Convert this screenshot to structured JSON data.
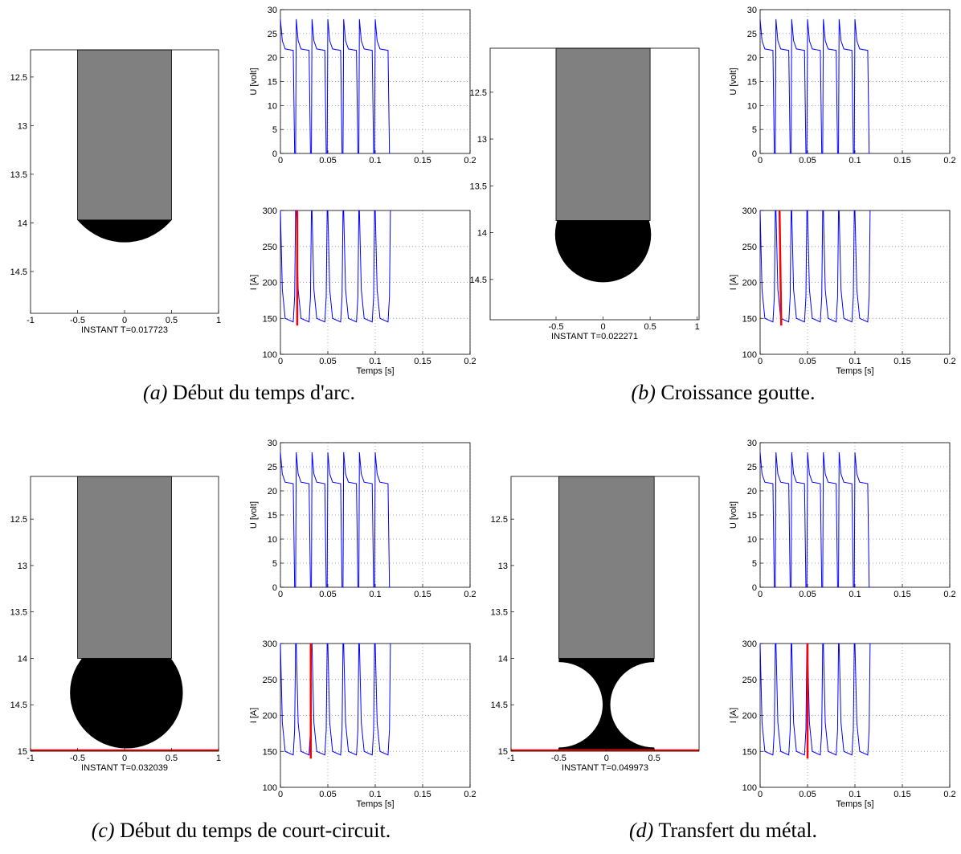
{
  "chart_data": [
    {
      "type": "drop",
      "xlabel": "INSTANT T=0.017723",
      "xlim": [
        -1,
        1
      ],
      "ylim": [
        12.22,
        14.93
      ],
      "y_reversed": true,
      "xticks": [
        -1,
        -0.5,
        0,
        0.5,
        1
      ],
      "yticks": [
        12.5,
        13,
        13.5,
        14,
        14.5
      ],
      "electrode": {
        "left": -0.5,
        "right": 0.5,
        "bottom": 13.97,
        "color": "#808080"
      },
      "drop": {
        "cx": 0,
        "cy": 13.54,
        "r": 0.66,
        "color": "#000000"
      }
    },
    {
      "type": "line",
      "ylabel": "U [volt]",
      "xlim": [
        0,
        0.2
      ],
      "ylim": [
        0,
        30
      ],
      "xticks": [
        0,
        0.05,
        0.1,
        0.15,
        0.2
      ],
      "yticks": [
        0,
        5,
        10,
        15,
        20,
        25,
        30
      ],
      "grid": true,
      "x": [
        0,
        0.002,
        0.005,
        0.0135,
        0.015,
        0.016,
        0.0167,
        0.0187,
        0.0217,
        0.0302,
        0.0317,
        0.0327,
        0.0333,
        0.0353,
        0.0383,
        0.0468,
        0.0483,
        0.0493,
        0.05,
        0.052,
        0.055,
        0.0635,
        0.065,
        0.066,
        0.0667,
        0.0687,
        0.0717,
        0.0802,
        0.0817,
        0.0827,
        0.0833,
        0.0853,
        0.0883,
        0.0968,
        0.0983,
        0.0993,
        0.1,
        0.102,
        0.105,
        0.1135,
        0.115,
        0.116
      ],
      "series": [
        {
          "color": "#0000ff",
          "values": [
            28,
            23.5,
            21.8,
            21.5,
            0,
            0,
            28,
            23.5,
            21.8,
            21.5,
            0,
            0,
            28,
            23.5,
            21.8,
            21.5,
            0,
            0,
            28,
            23.5,
            21.8,
            21.5,
            0,
            0,
            28,
            23.5,
            21.8,
            21.5,
            0,
            0,
            28,
            23.5,
            21.8,
            21.5,
            0,
            0,
            28,
            23.5,
            21.8,
            21.5,
            0,
            0
          ]
        }
      ]
    },
    {
      "type": "line",
      "ylabel": "I [A]",
      "xlabel": "Temps [s]",
      "xlim": [
        0,
        0.2
      ],
      "ylim": [
        100,
        300
      ],
      "xticks": [
        0,
        0.05,
        0.1,
        0.15,
        0.2
      ],
      "yticks": [
        100,
        150,
        200,
        250,
        300
      ],
      "grid": true,
      "x": [
        0,
        0.002,
        0.005,
        0.0135,
        0.015,
        0.016,
        0.0167,
        0.0187,
        0.0217,
        0.0302,
        0.0317,
        0.0327,
        0.0333,
        0.0353,
        0.0383,
        0.0468,
        0.0483,
        0.0493,
        0.05,
        0.052,
        0.055,
        0.0635,
        0.065,
        0.066,
        0.0667,
        0.0687,
        0.0717,
        0.0802,
        0.0817,
        0.0827,
        0.0833,
        0.0853,
        0.0883,
        0.0968,
        0.0983,
        0.0993,
        0.1,
        0.102,
        0.105,
        0.1135,
        0.115,
        0.116
      ],
      "series": [
        {
          "color": "#0000ff",
          "values": [
            300,
            190,
            150,
            145,
            180,
            300,
            300,
            190,
            150,
            145,
            180,
            300,
            300,
            190,
            150,
            145,
            180,
            300,
            300,
            190,
            150,
            145,
            180,
            300,
            300,
            190,
            150,
            145,
            180,
            300,
            300,
            190,
            150,
            145,
            180,
            300,
            300,
            190,
            150,
            145,
            180,
            300
          ]
        }
      ],
      "cursor": {
        "color": "#ff0000",
        "x": [
          0.0177,
          0.0177
        ],
        "values": [
          300,
          140
        ]
      }
    },
    {
      "type": "drop",
      "xlabel": "INSTANT T=0.022271",
      "xlim": [
        -1.2,
        1.02
      ],
      "ylim": [
        12.03,
        14.93
      ],
      "y_reversed": true,
      "xticks": [
        -0.5,
        0,
        0.5,
        1
      ],
      "yticks": [
        12.5,
        13,
        13.5,
        14,
        14.5
      ],
      "electrode": {
        "left": -0.5,
        "right": 0.5,
        "bottom": 13.87,
        "color": "#808080"
      },
      "drop": {
        "cx": 0,
        "cy": 14.02,
        "r": 0.51,
        "color": "#000000"
      }
    },
    {
      "type": "line",
      "ylabel": "U [volt]",
      "xlim": [
        0,
        0.2
      ],
      "ylim": [
        0,
        30
      ],
      "xticks": [
        0,
        0.05,
        0.1,
        0.15,
        0.2
      ],
      "yticks": [
        0,
        5,
        10,
        15,
        20,
        25,
        30
      ],
      "grid": true,
      "x": [
        0,
        0.002,
        0.005,
        0.0135,
        0.015,
        0.016,
        0.0167,
        0.0187,
        0.0217,
        0.0302,
        0.0317,
        0.0327,
        0.0333,
        0.0353,
        0.0383,
        0.0468,
        0.0483,
        0.0493,
        0.05,
        0.052,
        0.055,
        0.0635,
        0.065,
        0.066,
        0.0667,
        0.0687,
        0.0717,
        0.0802,
        0.0817,
        0.0827,
        0.0833,
        0.0853,
        0.0883,
        0.0968,
        0.0983,
        0.0993,
        0.1,
        0.102,
        0.105,
        0.1135,
        0.115,
        0.116
      ],
      "series": [
        {
          "color": "#0000ff",
          "values": [
            28,
            23.5,
            21.8,
            21.5,
            0,
            0,
            28,
            23.5,
            21.8,
            21.5,
            0,
            0,
            28,
            23.5,
            21.8,
            21.5,
            0,
            0,
            28,
            23.5,
            21.8,
            21.5,
            0,
            0,
            28,
            23.5,
            21.8,
            21.5,
            0,
            0,
            28,
            23.5,
            21.8,
            21.5,
            0,
            0,
            28,
            23.5,
            21.8,
            21.5,
            0,
            0
          ]
        }
      ]
    },
    {
      "type": "line",
      "ylabel": "I [A]",
      "xlabel": "Temps [s]",
      "xlim": [
        0,
        0.2
      ],
      "ylim": [
        100,
        300
      ],
      "xticks": [
        0,
        0.05,
        0.1,
        0.15,
        0.2
      ],
      "yticks": [
        100,
        150,
        200,
        250,
        300
      ],
      "grid": true,
      "x": [
        0,
        0.002,
        0.005,
        0.0135,
        0.015,
        0.016,
        0.0167,
        0.0187,
        0.0217,
        0.0302,
        0.0317,
        0.0327,
        0.0333,
        0.0353,
        0.0383,
        0.0468,
        0.0483,
        0.0493,
        0.05,
        0.052,
        0.055,
        0.0635,
        0.065,
        0.066,
        0.0667,
        0.0687,
        0.0717,
        0.0802,
        0.0817,
        0.0827,
        0.0833,
        0.0853,
        0.0883,
        0.0968,
        0.0983,
        0.0993,
        0.1,
        0.102,
        0.105,
        0.1135,
        0.115,
        0.116
      ],
      "series": [
        {
          "color": "#0000ff",
          "values": [
            300,
            190,
            150,
            145,
            180,
            300,
            300,
            190,
            150,
            145,
            180,
            300,
            300,
            190,
            150,
            145,
            180,
            300,
            300,
            190,
            150,
            145,
            180,
            300,
            300,
            190,
            150,
            145,
            180,
            300,
            300,
            190,
            150,
            145,
            180,
            300,
            300,
            190,
            150,
            145,
            180,
            300
          ]
        }
      ],
      "cursor": {
        "color": "#ff0000",
        "x": [
          0.0205,
          0.0223
        ],
        "values": [
          300,
          140
        ]
      }
    },
    {
      "type": "drop",
      "xlabel": "INSTANT T=0.032039",
      "xlim": [
        -1,
        1
      ],
      "ylim": [
        12.04,
        15
      ],
      "y_reversed": true,
      "xticks": [
        -1,
        -0.5,
        0,
        0.5,
        1
      ],
      "yticks": [
        12.5,
        13,
        13.5,
        14,
        14.5,
        15
      ],
      "electrode": {
        "left": -0.5,
        "right": 0.5,
        "bottom": 14.0,
        "color": "#808080"
      },
      "drop": {
        "cx": 0.02,
        "cy": 14.37,
        "r": 0.6,
        "color": "#000000"
      },
      "baseline": {
        "y": 15,
        "color": "#ff0000"
      }
    },
    {
      "type": "line",
      "ylabel": "U [volt]",
      "xlim": [
        0,
        0.2
      ],
      "ylim": [
        0,
        30
      ],
      "xticks": [
        0,
        0.05,
        0.1,
        0.15,
        0.2
      ],
      "yticks": [
        0,
        5,
        10,
        15,
        20,
        25,
        30
      ],
      "grid": true,
      "x": [
        0,
        0.002,
        0.005,
        0.0135,
        0.015,
        0.016,
        0.0167,
        0.0187,
        0.0217,
        0.0302,
        0.0317,
        0.0327,
        0.0333,
        0.0353,
        0.0383,
        0.0468,
        0.0483,
        0.0493,
        0.05,
        0.052,
        0.055,
        0.0635,
        0.065,
        0.066,
        0.0667,
        0.0687,
        0.0717,
        0.0802,
        0.0817,
        0.0827,
        0.0833,
        0.0853,
        0.0883,
        0.0968,
        0.0983,
        0.0993,
        0.1,
        0.102,
        0.105,
        0.1135,
        0.115,
        0.116
      ],
      "series": [
        {
          "color": "#0000ff",
          "values": [
            28,
            23.5,
            21.8,
            21.5,
            0,
            0,
            28,
            23.5,
            21.8,
            21.5,
            0,
            0,
            28,
            23.5,
            21.8,
            21.5,
            0,
            0,
            28,
            23.5,
            21.8,
            21.5,
            0,
            0,
            28,
            23.5,
            21.8,
            21.5,
            0,
            0,
            28,
            23.5,
            21.8,
            21.5,
            0,
            0,
            28,
            23.5,
            21.8,
            21.5,
            0,
            0
          ]
        }
      ]
    },
    {
      "type": "line",
      "ylabel": "I [A]",
      "xlabel": "Temps [s]",
      "xlim": [
        0,
        0.2
      ],
      "ylim": [
        100,
        300
      ],
      "xticks": [
        0,
        0.05,
        0.1,
        0.15,
        0.2
      ],
      "yticks": [
        100,
        150,
        200,
        250,
        300
      ],
      "grid": true,
      "x": [
        0,
        0.002,
        0.005,
        0.0135,
        0.015,
        0.016,
        0.0167,
        0.0187,
        0.0217,
        0.0302,
        0.0317,
        0.0327,
        0.0333,
        0.0353,
        0.0383,
        0.0468,
        0.0483,
        0.0493,
        0.05,
        0.052,
        0.055,
        0.0635,
        0.065,
        0.066,
        0.0667,
        0.0687,
        0.0717,
        0.0802,
        0.0817,
        0.0827,
        0.0833,
        0.0853,
        0.0883,
        0.0968,
        0.0983,
        0.0993,
        0.1,
        0.102,
        0.105,
        0.1135,
        0.115,
        0.116
      ],
      "series": [
        {
          "color": "#0000ff",
          "values": [
            300,
            190,
            150,
            145,
            180,
            300,
            300,
            190,
            150,
            145,
            180,
            300,
            300,
            190,
            150,
            145,
            180,
            300,
            300,
            190,
            150,
            145,
            180,
            300,
            300,
            190,
            150,
            145,
            180,
            300,
            300,
            190,
            150,
            145,
            180,
            300,
            300,
            190,
            150,
            145,
            180,
            300
          ]
        }
      ],
      "cursor": {
        "color": "#ff0000",
        "x": [
          0.032,
          0.032
        ],
        "values": [
          300,
          140
        ]
      }
    },
    {
      "type": "drop",
      "xlabel": "INSTANT T=0.049973",
      "xlim": [
        -1,
        0.97
      ],
      "ylim": [
        12.04,
        15
      ],
      "y_reversed": true,
      "xticks": [
        -1,
        -0.5,
        0,
        0.5
      ],
      "yticks": [
        12.5,
        13,
        13.5,
        14,
        14.5,
        15
      ],
      "electrode": {
        "left": -0.5,
        "right": 0.5,
        "bottom": 14.0,
        "color": "#808080"
      },
      "neck": {
        "top": 14,
        "bottom": 15,
        "color": "#000000",
        "cutouts": [
          {
            "cx": -0.5,
            "cy": 14.5,
            "r": 0.46
          },
          {
            "cx": 0.5,
            "cy": 14.5,
            "r": 0.46
          }
        ]
      },
      "baseline": {
        "y": 15,
        "color": "#ff0000"
      }
    },
    {
      "type": "line",
      "ylabel": "U [volt]",
      "xlim": [
        0,
        0.2
      ],
      "ylim": [
        0,
        30
      ],
      "xticks": [
        0,
        0.05,
        0.1,
        0.15,
        0.2
      ],
      "yticks": [
        0,
        5,
        10,
        15,
        20,
        25,
        30
      ],
      "grid": true,
      "x": [
        0,
        0.002,
        0.005,
        0.0135,
        0.015,
        0.016,
        0.0167,
        0.0187,
        0.0217,
        0.0302,
        0.0317,
        0.0327,
        0.0333,
        0.0353,
        0.0383,
        0.0468,
        0.0483,
        0.0493,
        0.05,
        0.052,
        0.055,
        0.0635,
        0.065,
        0.066,
        0.0667,
        0.0687,
        0.0717,
        0.0802,
        0.0817,
        0.0827,
        0.0833,
        0.0853,
        0.0883,
        0.0968,
        0.0983,
        0.0993,
        0.1,
        0.102,
        0.105,
        0.1135,
        0.115,
        0.116
      ],
      "series": [
        {
          "color": "#0000ff",
          "values": [
            28,
            23.5,
            21.8,
            21.5,
            0,
            0,
            28,
            23.5,
            21.8,
            21.5,
            0,
            0,
            28,
            23.5,
            21.8,
            21.5,
            0,
            0,
            28,
            23.5,
            21.8,
            21.5,
            0,
            0,
            28,
            23.5,
            21.8,
            21.5,
            0,
            0,
            28,
            23.5,
            21.8,
            21.5,
            0,
            0,
            28,
            23.5,
            21.8,
            21.5,
            0,
            0
          ]
        }
      ]
    },
    {
      "type": "line",
      "ylabel": "I [A]",
      "xlabel": "Temps [s]",
      "xlim": [
        0,
        0.2
      ],
      "ylim": [
        100,
        300
      ],
      "xticks": [
        0,
        0.05,
        0.1,
        0.15,
        0.2
      ],
      "yticks": [
        100,
        150,
        200,
        250,
        300
      ],
      "grid": true,
      "x": [
        0,
        0.002,
        0.005,
        0.0135,
        0.015,
        0.016,
        0.0167,
        0.0187,
        0.0217,
        0.0302,
        0.0317,
        0.0327,
        0.0333,
        0.0353,
        0.0383,
        0.0468,
        0.0483,
        0.0493,
        0.05,
        0.052,
        0.055,
        0.0635,
        0.065,
        0.066,
        0.0667,
        0.0687,
        0.0717,
        0.0802,
        0.0817,
        0.0827,
        0.0833,
        0.0853,
        0.0883,
        0.0968,
        0.0983,
        0.0993,
        0.1,
        0.102,
        0.105,
        0.1135,
        0.115,
        0.116
      ],
      "series": [
        {
          "color": "#0000ff",
          "values": [
            300,
            190,
            150,
            145,
            180,
            300,
            300,
            190,
            150,
            145,
            180,
            300,
            300,
            190,
            150,
            145,
            180,
            300,
            300,
            190,
            150,
            145,
            180,
            300,
            300,
            190,
            150,
            145,
            180,
            300,
            300,
            190,
            150,
            145,
            180,
            300,
            300,
            190,
            150,
            145,
            180,
            300
          ]
        }
      ],
      "cursor": {
        "color": "#ff0000",
        "x": [
          0.05,
          0.05
        ],
        "values": [
          300,
          140
        ]
      }
    }
  ],
  "captions": [
    {
      "label": "(a)",
      "text": "Début du temps d'arc."
    },
    {
      "label": "(b)",
      "text": "Croissance goutte."
    },
    {
      "label": "(c)",
      "text": "Début du temps de court-circuit."
    },
    {
      "label": "(d)",
      "text": "Transfert du métal."
    }
  ]
}
